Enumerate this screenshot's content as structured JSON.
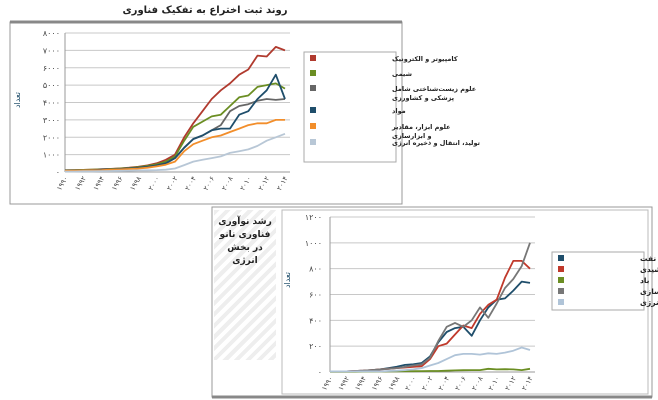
{
  "chart_data": [
    {
      "type": "line",
      "title": "روند ثبت اختراع به تفکیک فناوری",
      "xlabel": "",
      "ylabel": "تعداد",
      "ylim": [
        0,
        8000
      ],
      "y_ticks": [
        0,
        1000,
        2000,
        3000,
        4000,
        5000,
        6000,
        7000,
        8000
      ],
      "y_tick_labels": [
        "۰",
        "۱۰۰۰",
        "۲۰۰۰",
        "۳۰۰۰",
        "۴۰۰۰",
        "۵۰۰۰",
        "۶۰۰۰",
        "۷۰۰۰",
        "۸۰۰۰"
      ],
      "x": [
        1990,
        1991,
        1992,
        1993,
        1994,
        1995,
        1996,
        1997,
        1998,
        1999,
        2000,
        2001,
        2002,
        2003,
        2004,
        2005,
        2006,
        2007,
        2008,
        2009,
        2010,
        2011,
        2012,
        2013,
        2014
      ],
      "x_tick_labels": [
        "۱۹۹۰",
        "۱۹۹۲",
        "۱۹۹۴",
        "۱۹۹۶",
        "۱۹۹۸",
        "۲۰۰۰",
        "۲۰۰۲",
        "۲۰۰۴",
        "۲۰۰۶",
        "۲۰۰۸",
        "۲۰۱۰",
        "۲۰۱۲",
        "۲۰۱۴"
      ],
      "grid": true,
      "legend": "right",
      "series": [
        {
          "name": "کامپیوتر و الکترونیک",
          "color": "#b03a2e",
          "values": [
            100,
            110,
            120,
            140,
            160,
            180,
            210,
            250,
            300,
            380,
            500,
            700,
            1000,
            2000,
            2800,
            3500,
            4200,
            4700,
            5100,
            5600,
            5900,
            6700,
            6650,
            7200,
            7000
          ]
        },
        {
          "name": "شیمی",
          "color": "#6b8e23",
          "values": [
            100,
            110,
            120,
            130,
            150,
            170,
            200,
            230,
            280,
            350,
            450,
            600,
            900,
            1800,
            2600,
            2900,
            3200,
            3300,
            3800,
            4300,
            4400,
            4900,
            5000,
            5100,
            4800
          ]
        },
        {
          "name": "علوم زیست‌شناختی شامل پزشکی و کشاورزی",
          "color": "#666666",
          "values": [
            80,
            90,
            100,
            110,
            130,
            150,
            170,
            200,
            240,
            300,
            380,
            500,
            800,
            1400,
            1900,
            2100,
            2400,
            2700,
            3500,
            3800,
            3900,
            4100,
            4200,
            4150,
            4200
          ]
        },
        {
          "name": "مواد",
          "color": "#1f4e6b",
          "values": [
            80,
            90,
            100,
            110,
            130,
            150,
            170,
            200,
            240,
            300,
            380,
            500,
            800,
            1400,
            1900,
            2100,
            2400,
            2500,
            2500,
            3300,
            3500,
            4200,
            4700,
            5600,
            4200
          ]
        },
        {
          "name": "علوم ابزار، مقادیر و ابزارسازی",
          "color": "#f28e2b",
          "values": [
            70,
            80,
            90,
            100,
            110,
            130,
            150,
            170,
            200,
            250,
            320,
            420,
            600,
            1200,
            1600,
            1800,
            2000,
            2100,
            2300,
            2500,
            2700,
            2800,
            2800,
            3000,
            3000
          ]
        },
        {
          "name": "تولید، انتقال و ذخیره انرژی",
          "color": "#b8c7d6",
          "values": [
            30,
            30,
            40,
            40,
            50,
            60,
            70,
            80,
            90,
            100,
            110,
            130,
            200,
            400,
            600,
            700,
            800,
            900,
            1100,
            1200,
            1300,
            1500,
            1800,
            2000,
            2200
          ]
        }
      ]
    },
    {
      "type": "line",
      "title": "رشد نوآوری فناوری نانو در بخش انرژی",
      "xlabel": "",
      "ylabel": "تعداد",
      "ylim": [
        0,
        1200
      ],
      "y_ticks": [
        0,
        200,
        400,
        600,
        800,
        1000,
        1200
      ],
      "y_tick_labels": [
        "۰",
        "۲۰۰",
        "۴۰۰",
        "۶۰۰",
        "۸۰۰",
        "۱۰۰۰",
        "۱۲۰۰"
      ],
      "x": [
        1990,
        1991,
        1992,
        1993,
        1994,
        1995,
        1996,
        1997,
        1998,
        1999,
        2000,
        2001,
        2002,
        2003,
        2004,
        2005,
        2006,
        2007,
        2008,
        2009,
        2010,
        2011,
        2012,
        2013,
        2014
      ],
      "x_tick_labels": [
        "۱۹۹۰",
        "۱۹۹۲",
        "۱۹۹۴",
        "۱۹۹۶",
        "۱۹۹۸",
        "۲۰۰۰",
        "۲۰۰۲",
        "۲۰۰۴",
        "۲۰۰۶",
        "۲۰۰۸",
        "۲۰۱۰",
        "۲۰۱۲",
        "۲۰۱۴"
      ],
      "grid": true,
      "legend": "right",
      "series": [
        {
          "name": "اکتشاف نفت",
          "color": "#1f4e6b",
          "values": [
            5,
            5,
            5,
            8,
            10,
            15,
            20,
            30,
            40,
            55,
            60,
            70,
            120,
            230,
            310,
            340,
            350,
            280,
            400,
            500,
            560,
            570,
            630,
            700,
            690
          ]
        },
        {
          "name": "خورشیدی",
          "color": "#c0392b",
          "values": [
            5,
            5,
            5,
            8,
            10,
            15,
            20,
            25,
            30,
            35,
            40,
            45,
            100,
            200,
            220,
            290,
            360,
            340,
            450,
            520,
            560,
            730,
            860,
            860,
            800
          ]
        },
        {
          "name": "باد",
          "color": "#6b8e23",
          "values": [
            2,
            2,
            2,
            2,
            3,
            3,
            4,
            5,
            5,
            6,
            6,
            7,
            8,
            8,
            10,
            12,
            14,
            15,
            15,
            25,
            20,
            22,
            20,
            15,
            25
          ]
        },
        {
          "name": "ذخیره‌سازی",
          "color": "#777777",
          "values": [
            5,
            5,
            5,
            8,
            10,
            15,
            20,
            25,
            30,
            40,
            50,
            60,
            110,
            240,
            350,
            380,
            350,
            400,
            500,
            420,
            530,
            650,
            720,
            820,
            1000
          ]
        },
        {
          "name": "جابجایی انرژی",
          "color": "#b0c4d8",
          "values": [
            5,
            5,
            5,
            5,
            5,
            5,
            5,
            8,
            10,
            15,
            20,
            30,
            50,
            70,
            100,
            130,
            140,
            140,
            135,
            145,
            140,
            150,
            165,
            190,
            170
          ]
        }
      ]
    }
  ]
}
